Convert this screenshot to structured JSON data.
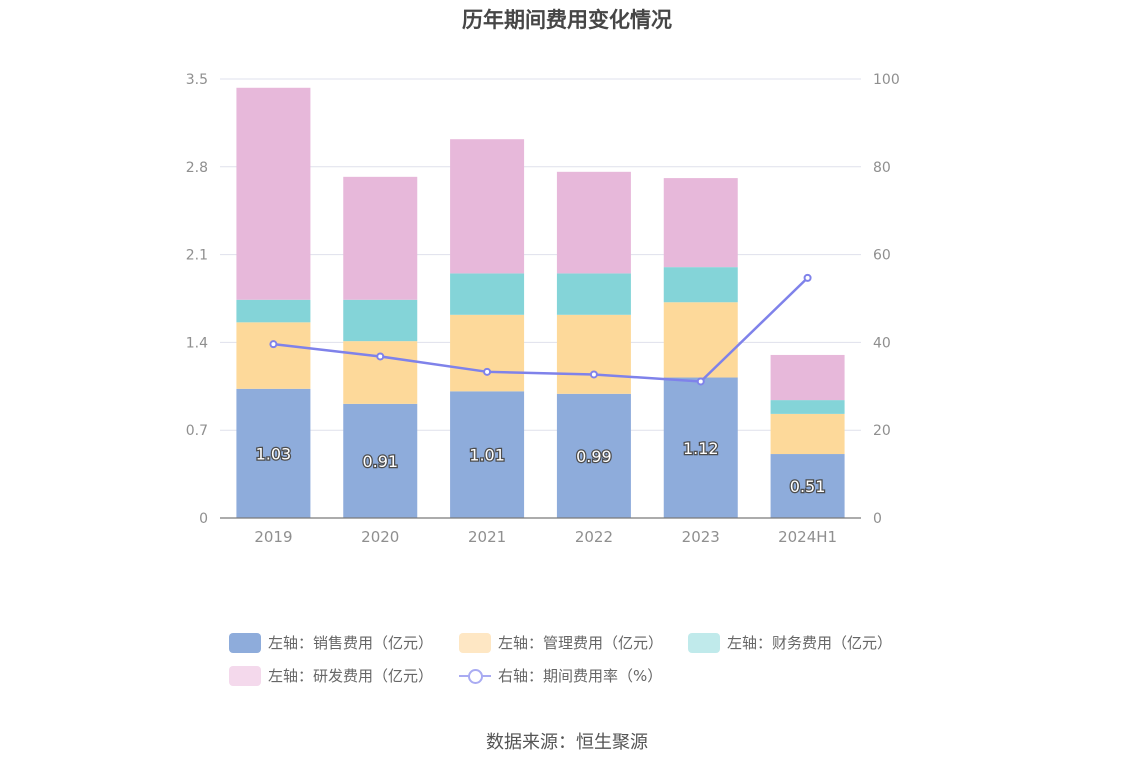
{
  "title": "历年期间费用变化情况",
  "source": "数据来源：恒生聚源",
  "colors": {
    "sales": "#8eacdb",
    "admin": "#fdd99a",
    "finance": "#84d4d8",
    "rnd": "#e7b8da",
    "rate": "#7f82ea",
    "grid": "#dfe1ec",
    "axis_text": "#8f8f8f"
  },
  "legend": [
    {
      "label": "左轴：销售费用（亿元）",
      "color": "#8eacdb",
      "kind": "box"
    },
    {
      "label": "左轴：管理费用（亿元）",
      "color": "#fee7c4",
      "kind": "box"
    },
    {
      "label": "左轴：财务费用（亿元）",
      "color": "#c0eaeb",
      "kind": "box"
    },
    {
      "label": "左轴：研发费用（亿元）",
      "color": "#f4d9ec",
      "kind": "box"
    },
    {
      "label": "右轴：期间费用率（%）",
      "color": "#a9abf2",
      "kind": "line"
    }
  ],
  "chart_data": {
    "type": "bar",
    "stacked": true,
    "title": "历年期间费用变化情况",
    "categories": [
      "2019",
      "2020",
      "2021",
      "2022",
      "2023",
      "2024H1"
    ],
    "left_axis": {
      "ticks": [
        "0",
        "0.7",
        "1.4",
        "2.1",
        "2.8",
        "3.5"
      ],
      "ylim": [
        0,
        3.5
      ]
    },
    "right_axis": {
      "ticks": [
        "0",
        "20",
        "40",
        "60",
        "80",
        "100"
      ],
      "ylim": [
        0,
        100
      ]
    },
    "series": [
      {
        "name": "左轴：销售费用（亿元）",
        "axis": "left",
        "type": "bar",
        "color": "#8eacdb",
        "values": [
          1.03,
          0.91,
          1.01,
          0.99,
          1.12,
          0.51
        ],
        "labels": [
          "1.03",
          "0.91",
          "1.01",
          "0.99",
          "1.12",
          "0.51"
        ]
      },
      {
        "name": "左轴：管理费用（亿元）",
        "axis": "left",
        "type": "bar",
        "color": "#fdd99a",
        "values": [
          0.53,
          0.5,
          0.61,
          0.63,
          0.6,
          0.32
        ]
      },
      {
        "name": "左轴：财务费用（亿元）",
        "axis": "left",
        "type": "bar",
        "color": "#84d4d8",
        "values": [
          0.18,
          0.33,
          0.33,
          0.33,
          0.28,
          0.11
        ]
      },
      {
        "name": "左轴：研发费用（亿元）",
        "axis": "left",
        "type": "bar",
        "color": "#e7b8da",
        "values": [
          1.69,
          0.98,
          1.07,
          0.81,
          0.71,
          0.36
        ]
      },
      {
        "name": "右轴：期间费用率（%）",
        "axis": "right",
        "type": "line",
        "color": "#7f82ea",
        "values": [
          39.6,
          36.8,
          33.3,
          32.7,
          31.1,
          54.7
        ]
      }
    ],
    "grid": true,
    "legend_position": "bottom"
  }
}
